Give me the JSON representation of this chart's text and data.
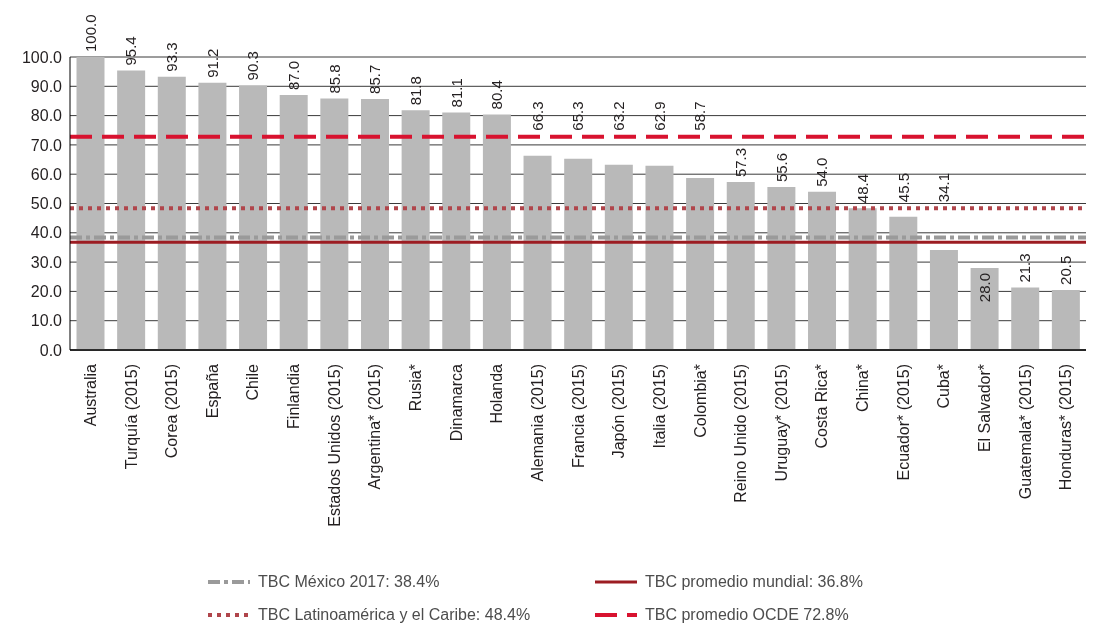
{
  "chart_data": {
    "type": "bar",
    "categories": [
      "Australia",
      "Turquía (2015)",
      "Corea (2015)",
      "España",
      "Chile",
      "Finlandia",
      "Estados Unidos (2015)",
      "Argentina* (2015)",
      "Rusia*",
      "Dinamarca",
      "Holanda",
      "Alemania (2015)",
      "Francia (2015)",
      "Japón (2015)",
      "Italia (2015)",
      "Colombia*",
      "Reino Unido (2015)",
      "Uruguay* (2015)",
      "Costa Rica*",
      "China*",
      "Ecuador* (2015)",
      "Cuba*",
      "El Salvador*",
      "Guatemala* (2015)",
      "Honduras* (2015)"
    ],
    "values": [
      100.0,
      95.4,
      93.3,
      91.2,
      90.3,
      87.0,
      85.8,
      85.7,
      81.8,
      81.1,
      80.4,
      66.3,
      65.3,
      63.2,
      62.9,
      58.7,
      57.3,
      55.6,
      54.0,
      48.4,
      45.5,
      34.1,
      28.0,
      21.3,
      20.5
    ],
    "value_labels": [
      "100.0",
      "95.4",
      "93.3",
      "91.2",
      "90.3",
      "87.0",
      "85.8",
      "85.7",
      "81.8",
      "81.1",
      "80.4",
      "66.3",
      "65.3",
      "63.2",
      "62.9",
      "58.7",
      "57.3",
      "55.6",
      "54.0",
      "48.4",
      "45.5",
      "34.1",
      "28.0",
      "21.3",
      "20.5"
    ],
    "color": "#b9b9b9",
    "ylim": [
      0,
      100
    ],
    "yticks": [
      {
        "value": 0,
        "label": "0.0"
      },
      {
        "value": 10,
        "label": "10.0"
      },
      {
        "value": 20,
        "label": "20.0"
      },
      {
        "value": 30,
        "label": "30.0"
      },
      {
        "value": 40,
        "label": "40.0"
      },
      {
        "value": 50,
        "label": "50.0"
      },
      {
        "value": 60,
        "label": "60.0"
      },
      {
        "value": 70,
        "label": "70.0"
      },
      {
        "value": 80,
        "label": "80.0"
      },
      {
        "value": 90,
        "label": "90.0"
      },
      {
        "value": 100,
        "label": "100.0"
      }
    ],
    "grid": "y",
    "legend": "bottom",
    "ref_lines": [
      {
        "axis": "y",
        "value": 38.4,
        "label": "TBC México 2017: 38.4%",
        "color": "#9a9a9a",
        "line_style": "dashdot"
      },
      {
        "axis": "y",
        "value": 48.4,
        "label": "TBC Latinoamérica y el Caribe: 48.4%",
        "color": "#b0454b",
        "line_style": "dotted"
      },
      {
        "axis": "y",
        "value": 36.8,
        "label": "TBC promedio mundial: 36.8%",
        "color": "#9c1c22",
        "line_style": "solid"
      },
      {
        "axis": "y",
        "value": 72.8,
        "label": "TBC promedio OCDE 72.8%",
        "color": "#d8122f",
        "line_style": "dashed"
      }
    ]
  }
}
